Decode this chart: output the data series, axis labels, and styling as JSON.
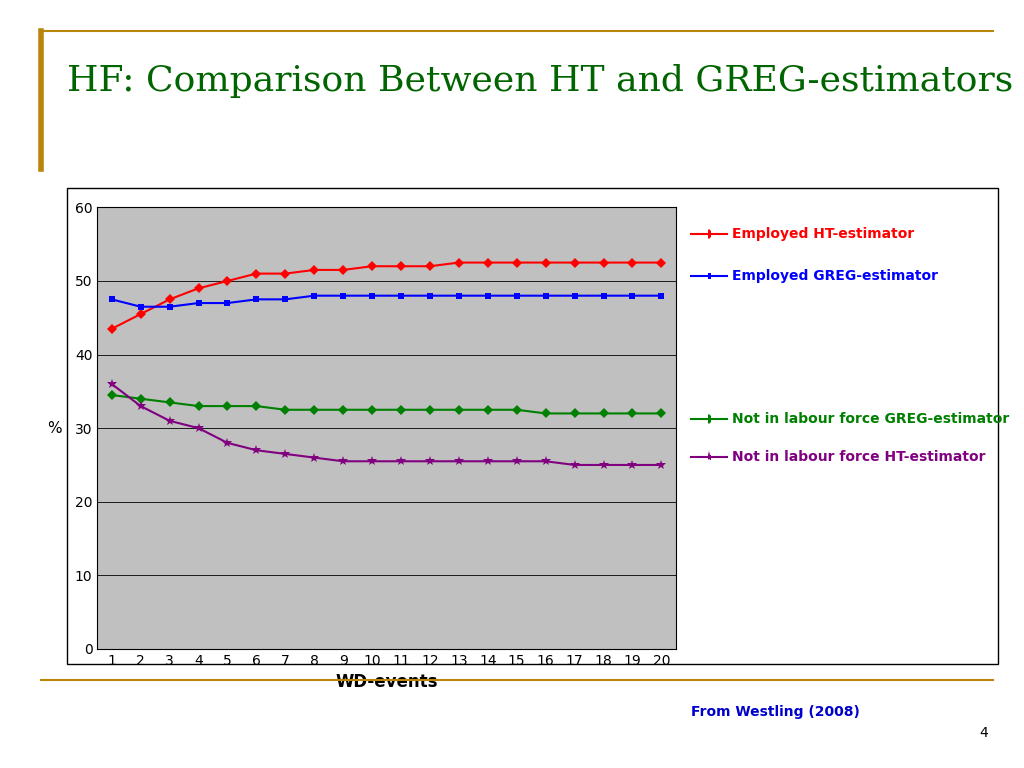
{
  "title": "HF: Comparison Between HT and GREG-estimators",
  "title_color": "#006400",
  "xlabel": "WD-events",
  "ylabel": "%",
  "background_color": "#C0C0C0",
  "figure_background": "#FFFFFF",
  "x": [
    1,
    2,
    3,
    4,
    5,
    6,
    7,
    8,
    9,
    10,
    11,
    12,
    13,
    14,
    15,
    16,
    17,
    18,
    19,
    20
  ],
  "employed_ht": [
    43.5,
    45.5,
    47.5,
    49.0,
    50.0,
    51.0,
    51.0,
    51.5,
    51.5,
    52.0,
    52.0,
    52.0,
    52.5,
    52.5,
    52.5,
    52.5,
    52.5,
    52.5,
    52.5,
    52.5
  ],
  "employed_greg": [
    47.5,
    46.5,
    46.5,
    47.0,
    47.0,
    47.5,
    47.5,
    48.0,
    48.0,
    48.0,
    48.0,
    48.0,
    48.0,
    48.0,
    48.0,
    48.0,
    48.0,
    48.0,
    48.0,
    48.0
  ],
  "nilf_greg": [
    34.5,
    34.0,
    33.5,
    33.0,
    33.0,
    33.0,
    32.5,
    32.5,
    32.5,
    32.5,
    32.5,
    32.5,
    32.5,
    32.5,
    32.5,
    32.0,
    32.0,
    32.0,
    32.0,
    32.0
  ],
  "nilf_ht": [
    36.0,
    33.0,
    31.0,
    30.0,
    28.0,
    27.0,
    26.5,
    26.0,
    25.5,
    25.5,
    25.5,
    25.5,
    25.5,
    25.5,
    25.5,
    25.5,
    25.0,
    25.0,
    25.0,
    25.0
  ],
  "employed_ht_color": "#FF0000",
  "employed_greg_color": "#0000FF",
  "nilf_greg_color": "#008000",
  "nilf_ht_color": "#800080",
  "legend_labels": [
    "Employed HT-estimator",
    "Employed GREG-estimator",
    "Not in labour force GREG-estimator",
    "Not in labour force HT-estimator"
  ],
  "legend_colors": [
    "#FF0000",
    "#0000FF",
    "#008000",
    "#800080"
  ],
  "legend_markers": [
    "D",
    "s",
    "D",
    "*"
  ],
  "legend_marker_sizes": [
    5,
    4,
    5,
    8
  ],
  "footnote": "From Westling (2008)",
  "footnote_color": "#0000CD",
  "page_number": "4",
  "ylim": [
    0,
    60
  ],
  "yticks": [
    0,
    10,
    20,
    30,
    40,
    50,
    60
  ],
  "title_fontsize": 26,
  "axis_fontsize": 10,
  "legend_fontsize": 10,
  "border_color": "#B8860B",
  "left_bar_color": "#B8860B"
}
